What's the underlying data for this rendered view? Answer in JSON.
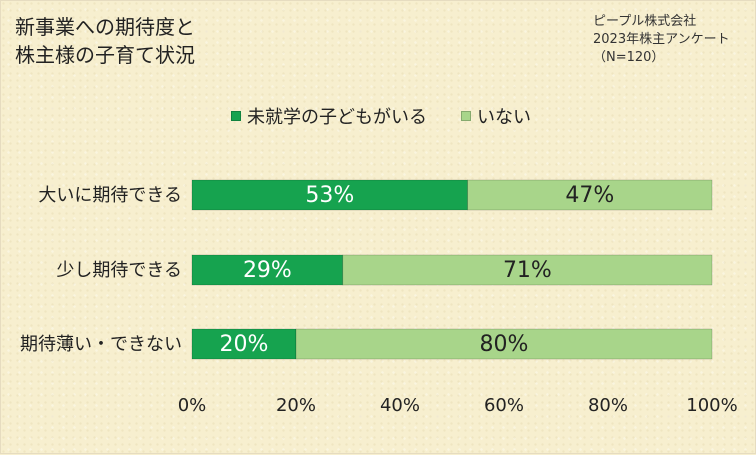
{
  "title": {
    "lines": [
      "新事業への期待度と",
      "株主様の子育て状況"
    ]
  },
  "source": {
    "lines": [
      "ピープル株式会社",
      "2023年株主アンケート",
      "（N=120）"
    ]
  },
  "colors": {
    "series1": "#16a34f",
    "series2": "#a8d58a",
    "value_label_series1": "#ffffff",
    "value_label_series2": "#222222",
    "background": "#f7efcf"
  },
  "chart_data": {
    "type": "bar",
    "orientation": "horizontal",
    "stacked": true,
    "percent_stacked": true,
    "categories": [
      "大いに期待できる",
      "少し期待できる",
      "期待薄い・できない"
    ],
    "series": [
      {
        "name": "未就学の子どもがいる",
        "values": [
          53,
          29,
          20
        ],
        "labels": [
          "53%",
          "29%",
          "20%"
        ]
      },
      {
        "name": "いない",
        "values": [
          47,
          71,
          80
        ],
        "labels": [
          "47%",
          "71%",
          "80%"
        ]
      }
    ],
    "xlim": [
      0,
      100
    ],
    "xticks": [
      0,
      20,
      40,
      60,
      80,
      100
    ],
    "xtick_labels": [
      "0%",
      "20%",
      "40%",
      "60%",
      "80%",
      "100%"
    ],
    "xlabel": "",
    "ylabel": "",
    "grid": false,
    "legend": "top"
  }
}
